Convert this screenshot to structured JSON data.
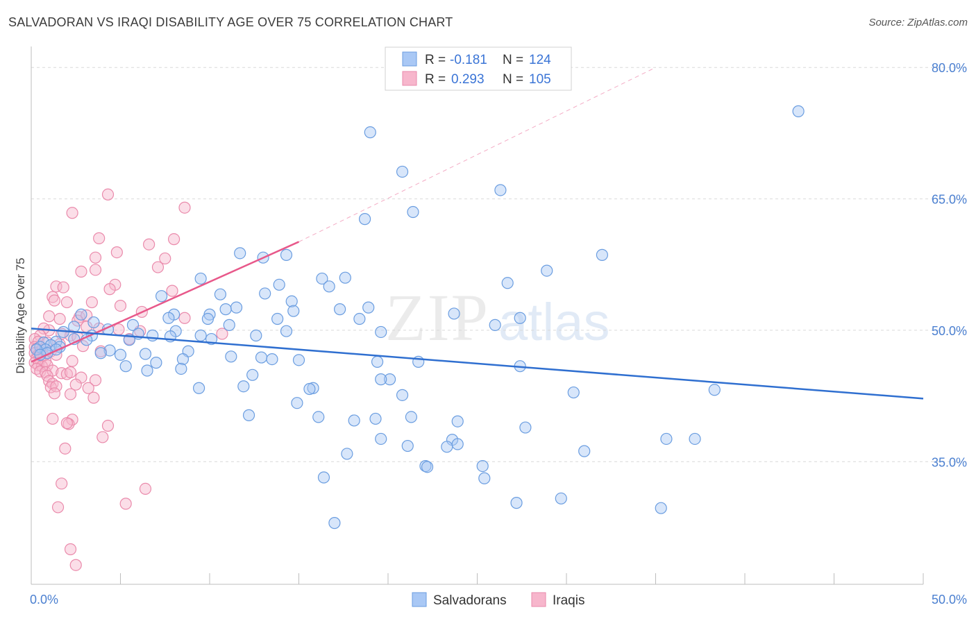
{
  "header": {
    "title": "SALVADORAN VS IRAQI DISABILITY AGE OVER 75 CORRELATION CHART",
    "source": "Source: ZipAtlas.com"
  },
  "watermark": {
    "zip": "ZIP",
    "atlas": "atlas"
  },
  "legend": {
    "rows": [
      {
        "r_label": "R =",
        "r_value": "-0.181",
        "n_label": "N =",
        "n_value": "124",
        "color": "#a9c8f5"
      },
      {
        "r_label": "R =",
        "r_value": "0.293",
        "n_label": "N =",
        "n_value": "105",
        "color": "#f7b6cc"
      }
    ]
  },
  "bottom_legend": [
    {
      "label": "Salvadorans",
      "color": "#a9c8f5"
    },
    {
      "label": "Iraqis",
      "color": "#f7b6cc"
    }
  ],
  "colors": {
    "blue_fill": "#a9c8f5",
    "blue_stroke": "#6a9de0",
    "blue_line": "#2f6fd0",
    "pink_fill": "#f7b6cc",
    "pink_stroke": "#ea8aab",
    "pink_line": "#e8588a",
    "grid": "#d9d9d9",
    "axis": "#bdbdbd"
  },
  "chart_data": {
    "type": "scatter",
    "title": "SALVADORAN VS IRAQI DISABILITY AGE OVER 75 CORRELATION CHART",
    "xlabel": "",
    "ylabel": "Disability Age Over 75",
    "xlim": [
      0,
      50
    ],
    "ylim": [
      21,
      82
    ],
    "x_tick_labels": [
      "0.0%",
      "50.0%"
    ],
    "y_ticks": [
      35,
      50,
      65,
      80
    ],
    "y_tick_labels": [
      "35.0%",
      "50.0%",
      "65.0%",
      "80.0%"
    ],
    "grid": true,
    "series": [
      {
        "name": "Salvadorans",
        "r": -0.181,
        "n": 124,
        "trend": {
          "x": [
            0,
            50
          ],
          "y": [
            50.2,
            42.2
          ],
          "dashed_extension": false
        },
        "points": [
          [
            43.0,
            75.0
          ],
          [
            19.0,
            72.6
          ],
          [
            20.8,
            68.1
          ],
          [
            26.3,
            66.0
          ],
          [
            21.4,
            63.5
          ],
          [
            18.7,
            62.7
          ],
          [
            32.0,
            58.6
          ],
          [
            11.7,
            58.8
          ],
          [
            13.0,
            58.3
          ],
          [
            14.3,
            58.6
          ],
          [
            28.9,
            56.8
          ],
          [
            9.5,
            55.9
          ],
          [
            17.6,
            56.0
          ],
          [
            16.3,
            55.9
          ],
          [
            26.7,
            55.4
          ],
          [
            13.9,
            55.2
          ],
          [
            16.7,
            55.0
          ],
          [
            7.3,
            53.9
          ],
          [
            10.6,
            54.1
          ],
          [
            13.1,
            54.2
          ],
          [
            14.6,
            53.3
          ],
          [
            11.5,
            52.6
          ],
          [
            10.9,
            52.4
          ],
          [
            17.3,
            52.4
          ],
          [
            18.9,
            52.6
          ],
          [
            14.7,
            52.2
          ],
          [
            23.7,
            51.9
          ],
          [
            8.0,
            51.8
          ],
          [
            10.0,
            51.8
          ],
          [
            7.7,
            51.4
          ],
          [
            9.9,
            51.3
          ],
          [
            13.8,
            51.3
          ],
          [
            18.4,
            51.3
          ],
          [
            27.4,
            51.4
          ],
          [
            2.8,
            51.8
          ],
          [
            3.5,
            50.9
          ],
          [
            11.1,
            50.6
          ],
          [
            26.0,
            50.6
          ],
          [
            5.7,
            50.6
          ],
          [
            8.1,
            49.9
          ],
          [
            2.4,
            50.4
          ],
          [
            4.3,
            50.1
          ],
          [
            6.0,
            49.6
          ],
          [
            1.8,
            49.8
          ],
          [
            14.3,
            49.9
          ],
          [
            19.6,
            49.8
          ],
          [
            3.4,
            49.4
          ],
          [
            6.8,
            49.4
          ],
          [
            7.8,
            49.3
          ],
          [
            9.5,
            49.4
          ],
          [
            12.6,
            49.4
          ],
          [
            10.1,
            49.0
          ],
          [
            3.1,
            48.9
          ],
          [
            5.5,
            48.9
          ],
          [
            2.4,
            49.0
          ],
          [
            1.4,
            48.7
          ],
          [
            0.7,
            48.6
          ],
          [
            1.1,
            48.3
          ],
          [
            0.5,
            48.1
          ],
          [
            1.6,
            48.1
          ],
          [
            0.8,
            47.8
          ],
          [
            0.3,
            47.8
          ],
          [
            1.4,
            47.8
          ],
          [
            0.9,
            47.4
          ],
          [
            0.5,
            47.2
          ],
          [
            4.4,
            47.7
          ],
          [
            8.8,
            47.6
          ],
          [
            6.4,
            47.3
          ],
          [
            3.9,
            47.4
          ],
          [
            5.0,
            47.2
          ],
          [
            11.2,
            47.0
          ],
          [
            12.9,
            46.9
          ],
          [
            13.5,
            46.7
          ],
          [
            15.0,
            46.6
          ],
          [
            8.5,
            46.7
          ],
          [
            7.0,
            46.3
          ],
          [
            19.4,
            46.4
          ],
          [
            21.7,
            46.4
          ],
          [
            5.3,
            45.9
          ],
          [
            8.4,
            45.6
          ],
          [
            6.5,
            45.4
          ],
          [
            27.4,
            45.9
          ],
          [
            12.4,
            44.9
          ],
          [
            20.1,
            44.4
          ],
          [
            19.6,
            44.4
          ],
          [
            11.9,
            43.6
          ],
          [
            9.4,
            43.4
          ],
          [
            15.8,
            43.4
          ],
          [
            15.6,
            43.3
          ],
          [
            30.4,
            42.9
          ],
          [
            38.3,
            43.2
          ],
          [
            20.8,
            42.6
          ],
          [
            14.9,
            41.7
          ],
          [
            16.1,
            40.1
          ],
          [
            12.2,
            40.3
          ],
          [
            18.1,
            39.7
          ],
          [
            21.3,
            40.1
          ],
          [
            27.7,
            38.9
          ],
          [
            23.9,
            39.6
          ],
          [
            19.3,
            39.9
          ],
          [
            35.6,
            37.6
          ],
          [
            37.2,
            37.6
          ],
          [
            23.6,
            37.5
          ],
          [
            19.6,
            37.6
          ],
          [
            23.3,
            36.7
          ],
          [
            23.9,
            37.0
          ],
          [
            21.1,
            36.8
          ],
          [
            31.0,
            36.2
          ],
          [
            17.7,
            35.9
          ],
          [
            22.1,
            34.5
          ],
          [
            22.2,
            34.4
          ],
          [
            25.3,
            34.5
          ],
          [
            25.4,
            33.1
          ],
          [
            16.4,
            33.2
          ],
          [
            27.2,
            30.3
          ],
          [
            29.7,
            30.8
          ],
          [
            35.3,
            29.7
          ],
          [
            17.0,
            28.0
          ]
        ]
      },
      {
        "name": "Iraqis",
        "r": 0.293,
        "n": 105,
        "trend": {
          "x": [
            0,
            15
          ],
          "y": [
            46.4,
            60.1
          ],
          "dashed_to": [
            35,
            80
          ]
        },
        "points": [
          [
            4.3,
            65.5
          ],
          [
            8.6,
            64.0
          ],
          [
            2.3,
            63.4
          ],
          [
            3.8,
            60.5
          ],
          [
            6.6,
            59.8
          ],
          [
            8.0,
            60.4
          ],
          [
            4.8,
            58.9
          ],
          [
            3.6,
            58.3
          ],
          [
            7.5,
            58.2
          ],
          [
            7.1,
            57.2
          ],
          [
            2.8,
            56.7
          ],
          [
            3.6,
            56.9
          ],
          [
            1.4,
            55.0
          ],
          [
            1.8,
            54.9
          ],
          [
            4.7,
            55.2
          ],
          [
            4.4,
            54.7
          ],
          [
            7.9,
            54.5
          ],
          [
            1.2,
            53.8
          ],
          [
            1.3,
            53.4
          ],
          [
            2.0,
            53.2
          ],
          [
            3.4,
            53.2
          ],
          [
            5.0,
            52.8
          ],
          [
            6.2,
            52.1
          ],
          [
            1.0,
            51.6
          ],
          [
            1.6,
            51.3
          ],
          [
            2.7,
            51.5
          ],
          [
            3.1,
            51.7
          ],
          [
            2.6,
            51.1
          ],
          [
            8.6,
            51.4
          ],
          [
            3.1,
            50.4
          ],
          [
            3.8,
            50.2
          ],
          [
            4.9,
            50.1
          ],
          [
            1.0,
            50.0
          ],
          [
            0.7,
            50.2
          ],
          [
            6.1,
            49.9
          ],
          [
            10.7,
            49.6
          ],
          [
            0.5,
            49.4
          ],
          [
            1.7,
            49.6
          ],
          [
            2.2,
            49.4
          ],
          [
            2.6,
            49.2
          ],
          [
            5.5,
            49.0
          ],
          [
            0.2,
            49.0
          ],
          [
            0.4,
            48.7
          ],
          [
            0.9,
            48.6
          ],
          [
            1.6,
            48.4
          ],
          [
            2.9,
            48.2
          ],
          [
            0.2,
            48.1
          ],
          [
            0.3,
            47.9
          ],
          [
            0.6,
            47.8
          ],
          [
            1.1,
            47.6
          ],
          [
            3.9,
            47.6
          ],
          [
            0.2,
            47.4
          ],
          [
            0.4,
            47.2
          ],
          [
            0.7,
            47.1
          ],
          [
            1.4,
            47.2
          ],
          [
            0.3,
            46.8
          ],
          [
            0.5,
            46.7
          ],
          [
            0.8,
            46.5
          ],
          [
            2.3,
            46.5
          ],
          [
            0.2,
            46.3
          ],
          [
            0.4,
            46.0
          ],
          [
            0.6,
            45.9
          ],
          [
            0.9,
            46.0
          ],
          [
            0.3,
            45.6
          ],
          [
            0.5,
            45.3
          ],
          [
            0.8,
            45.2
          ],
          [
            1.2,
            45.4
          ],
          [
            1.7,
            45.1
          ],
          [
            2.0,
            45.0
          ],
          [
            2.2,
            45.2
          ],
          [
            0.9,
            44.8
          ],
          [
            2.8,
            44.6
          ],
          [
            3.6,
            44.3
          ],
          [
            1.0,
            44.2
          ],
          [
            1.2,
            43.9
          ],
          [
            1.1,
            43.5
          ],
          [
            1.4,
            43.6
          ],
          [
            3.2,
            43.4
          ],
          [
            2.5,
            43.8
          ],
          [
            1.3,
            42.8
          ],
          [
            3.5,
            42.3
          ],
          [
            2.2,
            42.7
          ],
          [
            1.2,
            39.9
          ],
          [
            2.3,
            39.8
          ],
          [
            4.3,
            39.1
          ],
          [
            2.1,
            39.3
          ],
          [
            2.0,
            39.4
          ],
          [
            4.0,
            37.8
          ],
          [
            1.9,
            36.5
          ],
          [
            1.7,
            32.5
          ],
          [
            6.4,
            31.9
          ],
          [
            5.3,
            30.2
          ],
          [
            1.5,
            29.8
          ],
          [
            2.2,
            25.0
          ],
          [
            2.5,
            23.2
          ]
        ]
      }
    ]
  }
}
